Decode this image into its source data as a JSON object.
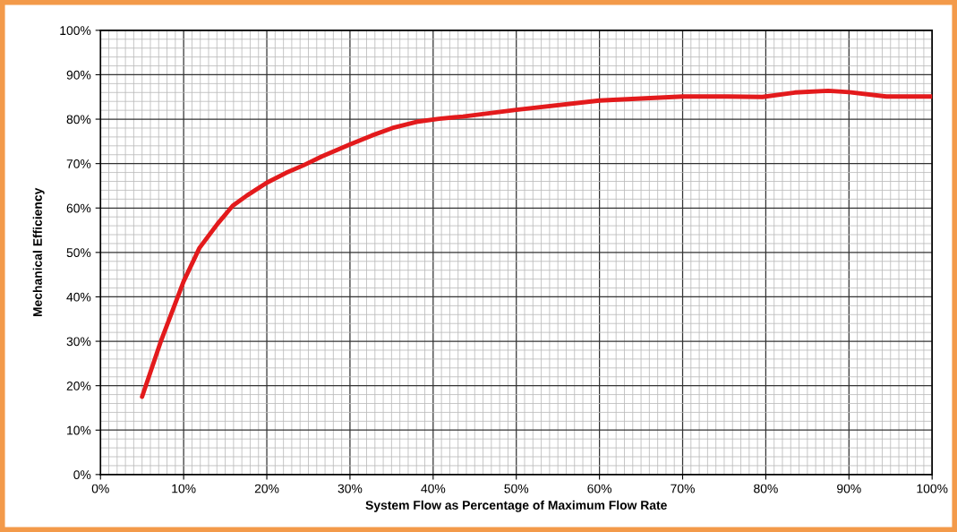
{
  "chart_data": {
    "type": "line",
    "xlabel": "System Flow as Percentage of Maximum Flow Rate",
    "ylabel": "Mechanical Efficiency",
    "series": [
      {
        "color": "#e31a1c",
        "x": [
          5,
          7.3,
          10,
          11.9,
          14.1,
          15.9,
          17.6,
          20,
          22.3,
          24.4,
          26.6,
          30,
          32.6,
          35.1,
          38,
          40.7,
          43.6,
          50,
          60,
          70,
          75.4,
          79.6,
          83.5,
          87.5,
          90,
          94.5,
          100
        ],
        "values": [
          17.5,
          30.2,
          43.5,
          51,
          56.5,
          60.5,
          62.8,
          65.7,
          67.9,
          69.6,
          71.6,
          74.3,
          76.3,
          78,
          79.4,
          80.1,
          80.6,
          82.1,
          84.2,
          85.1,
          85.1,
          85,
          86,
          86.4,
          86.1,
          85.1,
          85.1
        ]
      }
    ],
    "xlim": [
      0,
      100
    ],
    "ylim": [
      0,
      100
    ],
    "xticks": [
      {
        "value": 0,
        "label": "0%"
      },
      {
        "value": 10,
        "label": "10%"
      },
      {
        "value": 20,
        "label": "20%"
      },
      {
        "value": 30,
        "label": "30%"
      },
      {
        "value": 40,
        "label": "40%"
      },
      {
        "value": 50,
        "label": "50%"
      },
      {
        "value": 60,
        "label": "60%"
      },
      {
        "value": 70,
        "label": "70%"
      },
      {
        "value": 80,
        "label": "80%"
      },
      {
        "value": 90,
        "label": "90%"
      },
      {
        "value": 100,
        "label": "100%"
      }
    ],
    "yticks": [
      {
        "value": 0,
        "label": "0%"
      },
      {
        "value": 10,
        "label": "10%"
      },
      {
        "value": 20,
        "label": "20%"
      },
      {
        "value": 30,
        "label": "30%"
      },
      {
        "value": 40,
        "label": "40%"
      },
      {
        "value": 50,
        "label": "50%"
      },
      {
        "value": 60,
        "label": "60%"
      },
      {
        "value": 70,
        "label": "70%"
      },
      {
        "value": 80,
        "label": "80%"
      },
      {
        "value": 90,
        "label": "90%"
      },
      {
        "value": 100,
        "label": "100%"
      }
    ],
    "grid": true,
    "marker": "none",
    "line_style": "solid"
  }
}
